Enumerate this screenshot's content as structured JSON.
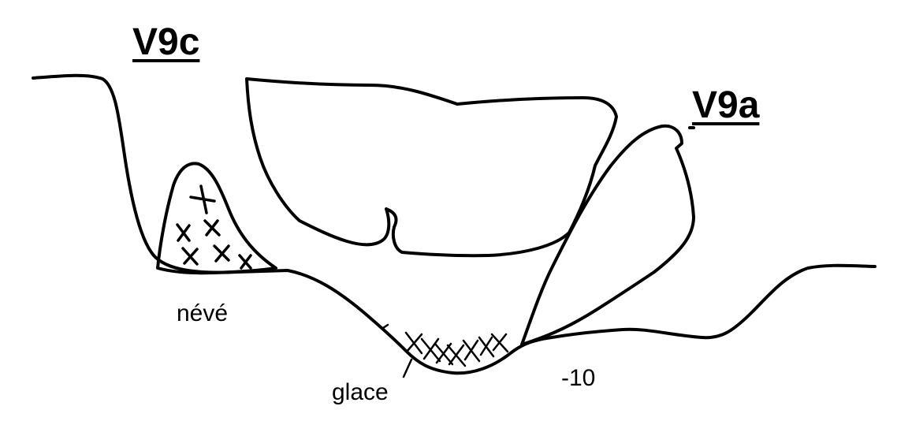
{
  "labels": {
    "v9c": "V9c",
    "v9a": "V9a",
    "neve": "névé",
    "glace": "glace",
    "depth": "-10"
  },
  "colors": {
    "ink": "#000000",
    "background": "#ffffff"
  }
}
